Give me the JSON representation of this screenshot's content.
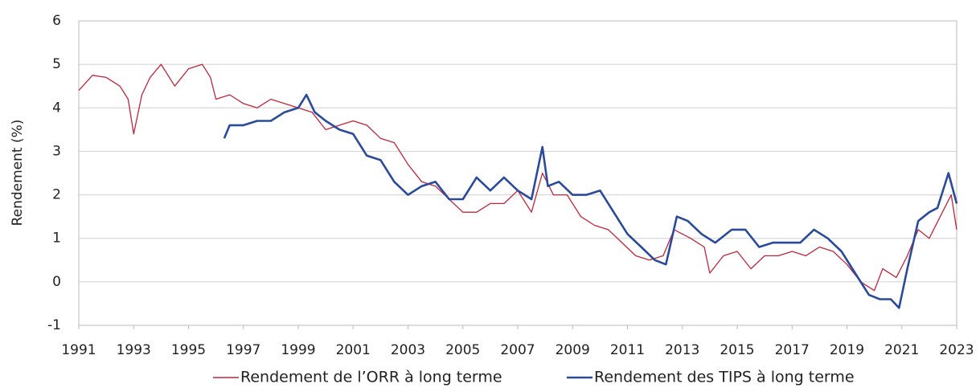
{
  "chart_data": {
    "type": "line",
    "y_label": "Rendement (%)",
    "xlim": [
      1991,
      2023
    ],
    "xticks": [
      1991,
      1993,
      1995,
      1997,
      1999,
      2001,
      2003,
      2005,
      2007,
      2009,
      2011,
      2013,
      2015,
      2017,
      2019,
      2021,
      2023
    ],
    "ylim": [
      -1,
      6
    ],
    "yticks": [
      -1,
      0,
      1,
      2,
      3,
      4,
      5,
      6
    ],
    "grid": true,
    "legend": "bottom",
    "series": [
      {
        "name": "Rendement de l’ORR à long terme",
        "color": "#c0253a",
        "x": [
          1991.0,
          1991.5,
          1992.0,
          1992.5,
          1992.8,
          1993.0,
          1993.3,
          1993.6,
          1994.0,
          1994.5,
          1995.0,
          1995.5,
          1995.8,
          1996.0,
          1996.5,
          1997.0,
          1997.5,
          1998.0,
          1998.5,
          1999.0,
          1999.5,
          2000.0,
          2000.5,
          2001.0,
          2001.5,
          2002.0,
          2002.5,
          2003.0,
          2003.5,
          2004.0,
          2004.5,
          2005.0,
          2005.5,
          2006.0,
          2006.5,
          2007.0,
          2007.5,
          2007.9,
          2008.3,
          2008.8,
          2009.3,
          2009.8,
          2010.3,
          2010.8,
          2011.3,
          2011.8,
          2012.3,
          2012.7,
          2013.3,
          2013.8,
          2014.0,
          2014.5,
          2015.0,
          2015.5,
          2016.0,
          2016.5,
          2017.0,
          2017.5,
          2018.0,
          2018.5,
          2019.0,
          2019.5,
          2020.0,
          2020.3,
          2020.8,
          2021.2,
          2021.6,
          2022.0,
          2022.4,
          2022.8,
          2023.0
        ],
        "values": [
          4.4,
          4.75,
          4.7,
          4.5,
          4.2,
          3.4,
          4.3,
          4.7,
          5.0,
          4.5,
          4.9,
          5.0,
          4.7,
          4.2,
          4.3,
          4.1,
          4.0,
          4.2,
          4.1,
          4.0,
          3.9,
          3.5,
          3.6,
          3.7,
          3.6,
          3.3,
          3.2,
          2.7,
          2.3,
          2.2,
          1.9,
          1.6,
          1.6,
          1.8,
          1.8,
          2.1,
          1.6,
          2.5,
          2.0,
          2.0,
          1.5,
          1.3,
          1.2,
          0.9,
          0.6,
          0.5,
          0.6,
          1.2,
          1.0,
          0.8,
          0.2,
          0.6,
          0.7,
          0.3,
          0.6,
          0.6,
          0.7,
          0.6,
          0.8,
          0.7,
          0.4,
          0.0,
          -0.2,
          0.3,
          0.1,
          0.6,
          1.2,
          1.0,
          1.5,
          2.0,
          1.2
        ]
      },
      {
        "name": "Rendement des TIPS à long terme",
        "color": "#2a4a9b",
        "x": [
          1996.3,
          1996.5,
          1997.0,
          1997.5,
          1998.0,
          1998.5,
          1999.0,
          1999.3,
          1999.6,
          2000.0,
          2000.5,
          2001.0,
          2001.5,
          2002.0,
          2002.5,
          2003.0,
          2003.5,
          2004.0,
          2004.5,
          2005.0,
          2005.5,
          2006.0,
          2006.5,
          2007.0,
          2007.5,
          2007.9,
          2008.1,
          2008.5,
          2009.0,
          2009.5,
          2010.0,
          2010.5,
          2011.0,
          2011.5,
          2012.0,
          2012.4,
          2012.8,
          2013.2,
          2013.7,
          2014.2,
          2014.8,
          2015.3,
          2015.8,
          2016.3,
          2016.8,
          2017.3,
          2017.8,
          2018.3,
          2018.8,
          2019.3,
          2019.8,
          2020.2,
          2020.6,
          2020.9,
          2021.2,
          2021.6,
          2022.0,
          2022.3,
          2022.7,
          2023.0
        ],
        "values": [
          3.3,
          3.6,
          3.6,
          3.7,
          3.7,
          3.9,
          4.0,
          4.3,
          3.9,
          3.7,
          3.5,
          3.4,
          2.9,
          2.8,
          2.3,
          2.0,
          2.2,
          2.3,
          1.9,
          1.9,
          2.4,
          2.1,
          2.4,
          2.1,
          1.9,
          3.1,
          2.2,
          2.3,
          2.0,
          2.0,
          2.1,
          1.6,
          1.1,
          0.8,
          0.5,
          0.4,
          1.5,
          1.4,
          1.1,
          0.9,
          1.2,
          1.2,
          0.8,
          0.9,
          0.9,
          0.9,
          1.2,
          1.0,
          0.7,
          0.2,
          -0.3,
          -0.4,
          -0.4,
          -0.6,
          0.3,
          1.4,
          1.6,
          1.7,
          2.5,
          1.8
        ]
      }
    ]
  }
}
